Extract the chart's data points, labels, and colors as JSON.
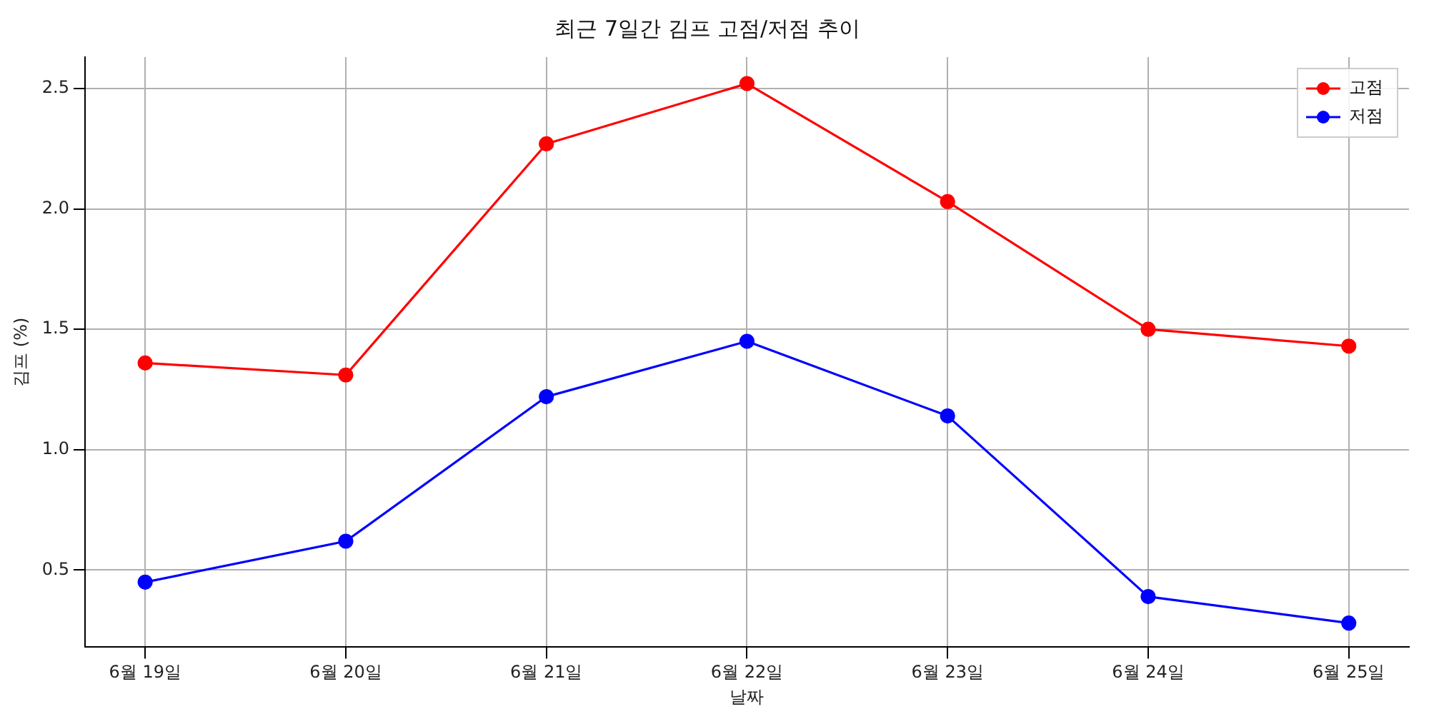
{
  "chart_data": {
    "type": "line",
    "title": "최근 7일간 김프 고점/저점 추이",
    "xlabel": "날짜",
    "ylabel": "김프 (%)",
    "categories": [
      "6월 19일",
      "6월 20일",
      "6월 21일",
      "6월 22일",
      "6월 23일",
      "6월 24일",
      "6월 25일"
    ],
    "series": [
      {
        "name": "고점",
        "color": "#ff0000",
        "values": [
          1.36,
          1.31,
          2.27,
          2.52,
          2.03,
          1.5,
          1.43
        ]
      },
      {
        "name": "저점",
        "color": "#0000ff",
        "values": [
          0.45,
          0.62,
          1.22,
          1.45,
          1.14,
          0.39,
          0.28
        ]
      }
    ],
    "ylim": [
      0.18,
      2.63
    ],
    "yticks": [
      {
        "value": 0.5,
        "label": "0.5"
      },
      {
        "value": 1.0,
        "label": "1.0"
      },
      {
        "value": 1.5,
        "label": "1.5"
      },
      {
        "value": 2.0,
        "label": "2.0"
      },
      {
        "value": 2.5,
        "label": "2.5"
      }
    ],
    "grid": true,
    "legend": "top right",
    "marker": "circle",
    "line_style": "solid"
  }
}
